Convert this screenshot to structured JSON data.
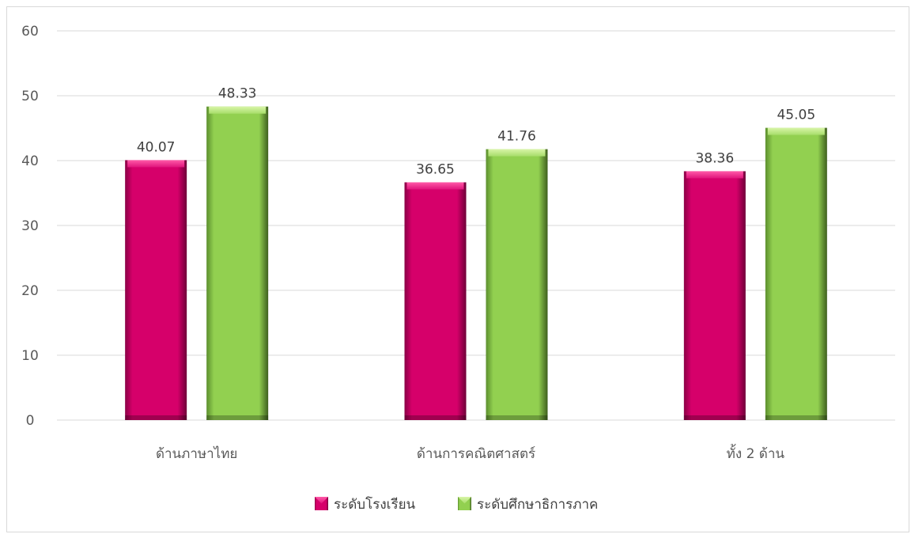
{
  "chart_data": {
    "type": "bar",
    "categories": [
      "ด้านภาษาไทย",
      "ด้านการคณิตศาสตร์",
      "ทั้ง 2 ด้าน"
    ],
    "series": [
      {
        "name": "ระดับโรงเรียน",
        "values": [
          40.07,
          36.65,
          38.36
        ],
        "color": "#d6006a"
      },
      {
        "name": "ระดับศึกษาธิการภาค",
        "values": [
          48.33,
          41.76,
          45.05
        ],
        "color": "#8fd14f"
      }
    ],
    "ylim": [
      0,
      60
    ],
    "yticks": [
      0,
      10,
      20,
      30,
      40,
      50,
      60
    ],
    "grid": true,
    "legend_position": "bottom",
    "title": "",
    "xlabel": "",
    "ylabel": ""
  }
}
